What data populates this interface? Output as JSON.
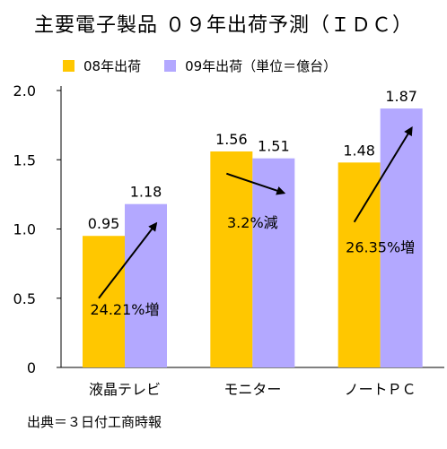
{
  "chart_data": {
    "type": "bar",
    "title": "主要電子製品 ０９年出荷予測（ＩＤＣ）",
    "categories": [
      "液晶テレビ",
      "モニター",
      "ノートＰＣ"
    ],
    "series": [
      {
        "name": "08年出荷",
        "values": [
          0.95,
          1.56,
          1.48
        ],
        "labels": [
          "0.95",
          "1.56",
          "1.48"
        ],
        "color": "#FFC700"
      },
      {
        "name": "09年出荷（単位＝億台）",
        "values": [
          1.18,
          1.51,
          1.87
        ],
        "labels": [
          "1.18",
          "1.51",
          "1.87"
        ],
        "color": "#B3A8FF"
      }
    ],
    "ylim": [
      0,
      2.0
    ],
    "yticks": [
      "0",
      "0.5",
      "1.0",
      "1.5",
      "2.0"
    ],
    "ytick_values": [
      0,
      0.5,
      1.0,
      1.5,
      2.0
    ],
    "grid": false,
    "legend_position": "top",
    "annotations": [
      "24.21%増",
      "3.2%減",
      "26.35%増"
    ]
  },
  "source": "出典＝３日付工商時報"
}
